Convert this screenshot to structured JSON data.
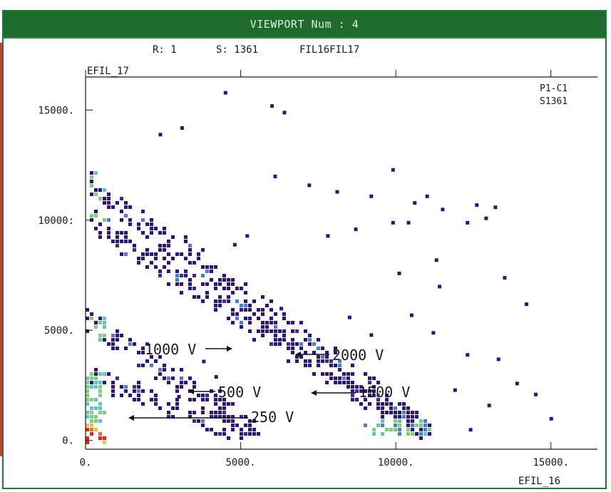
{
  "window": {
    "title": "VIEWPORT Num : 4"
  },
  "header": {
    "run_label": "R: 1",
    "spectrum_label": "S: 1361",
    "spectrum_name": "FIL16FIL17"
  },
  "tags": {
    "panel": "P1-C1",
    "spectrum": "S1361"
  },
  "chart_data": {
    "type": "heatmap",
    "xlabel": "EFIL_16",
    "ylabel": "EFIL_17",
    "xlim": [
      0,
      16500
    ],
    "ylim": [
      -400,
      16500
    ],
    "x_ticks": [
      0,
      5000,
      10000,
      15000
    ],
    "x_tick_labels": [
      "0.",
      "5000.",
      "10000.",
      "15000."
    ],
    "y_ticks": [
      0,
      5000,
      10000,
      15000
    ],
    "y_tick_labels": [
      "0.",
      "5000.",
      "10000:",
      "15000."
    ],
    "color_scale": [
      "#2c1380",
      "#3d2a9e",
      "#4a7fd0",
      "#5fc6c0",
      "#7fd07a",
      "#e5c840",
      "#f07028",
      "#e51f1f"
    ],
    "bands": [
      {
        "name": "250 V",
        "x0": 0,
        "y0": 3000,
        "x1": 5500,
        "y1": 200
      },
      {
        "name": "500 V",
        "x0": 0,
        "y0": 5600,
        "x1": 5500,
        "y1": 400
      },
      {
        "name": "1000 V",
        "x0": 0,
        "y0": 11900,
        "x1": 11000,
        "y1": 400
      },
      {
        "name": "2000 V",
        "x0": 0,
        "y0": 10200,
        "x1": 11000,
        "y1": 300
      }
    ],
    "outliers": [
      [
        4500,
        15800
      ],
      [
        6000,
        15200
      ],
      [
        6400,
        14900
      ],
      [
        3100,
        14200
      ],
      [
        2400,
        13900
      ],
      [
        9900,
        12300
      ],
      [
        6100,
        12000
      ],
      [
        7200,
        11600
      ],
      [
        8100,
        11300
      ],
      [
        9200,
        11100
      ],
      [
        10600,
        10800
      ],
      [
        11000,
        11100
      ],
      [
        11500,
        10500
      ],
      [
        12300,
        9900
      ],
      [
        12600,
        10700
      ],
      [
        13200,
        10600
      ],
      [
        12900,
        10100
      ],
      [
        5200,
        9300
      ],
      [
        4800,
        8900
      ],
      [
        7800,
        9300
      ],
      [
        8700,
        9600
      ],
      [
        9900,
        9900
      ],
      [
        10400,
        9900
      ],
      [
        10100,
        7600
      ],
      [
        11400,
        7000
      ],
      [
        11300,
        8200
      ],
      [
        13500,
        7400
      ],
      [
        6300,
        6000
      ],
      [
        8500,
        5600
      ],
      [
        9200,
        4800
      ],
      [
        10500,
        5700
      ],
      [
        12300,
        3900
      ],
      [
        11200,
        4900
      ],
      [
        13300,
        3700
      ],
      [
        14200,
        6200
      ],
      [
        3800,
        3600
      ],
      [
        4200,
        2900
      ],
      [
        3000,
        2000
      ],
      [
        13900,
        2600
      ],
      [
        15000,
        1000
      ],
      [
        14500,
        2100
      ],
      [
        12400,
        500
      ],
      [
        13000,
        1600
      ],
      [
        11900,
        2300
      ]
    ],
    "annotations": [
      {
        "text": "1000 V",
        "x": 4450,
        "y": 4700
      },
      {
        "text": "2000 V",
        "x": 6980,
        "y": 4000
      },
      {
        "text": "500 V",
        "x": 3400,
        "y": 2500
      },
      {
        "text": "1500 V",
        "x": 7350,
        "y": 2400
      },
      {
        "text": "250 V",
        "x": 1500,
        "y": 1300
      }
    ]
  }
}
